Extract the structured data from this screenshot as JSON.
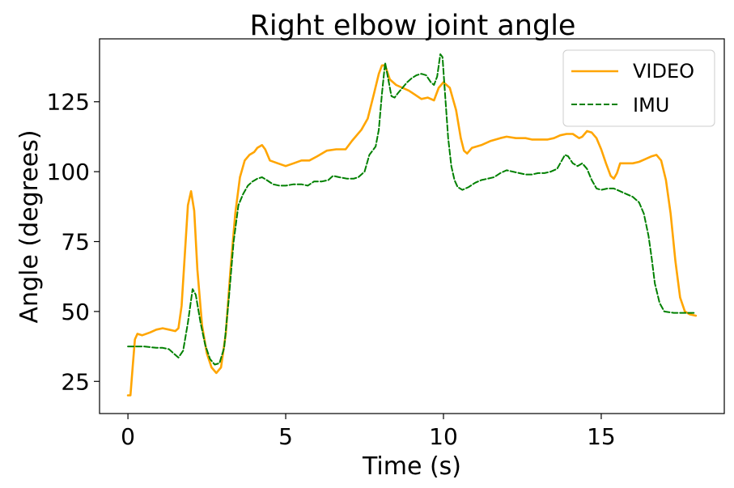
{
  "chart_data": {
    "type": "line",
    "title": "Right elbow joint angle",
    "xlabel": "Time (s)",
    "ylabel": "Angle (degrees)",
    "xlim": [
      -0.9,
      18.9
    ],
    "ylim": [
      13.5,
      147.5
    ],
    "xticks": [
      0,
      5,
      10,
      15
    ],
    "yticks": [
      25,
      50,
      75,
      100,
      125
    ],
    "grid": false,
    "legend_position": "top-right",
    "series": [
      {
        "name": "VIDEO",
        "color": "#ffa500",
        "dash": "solid",
        "points": [
          [
            0,
            20
          ],
          [
            0.08,
            20
          ],
          [
            0.15,
            30
          ],
          [
            0.22,
            40
          ],
          [
            0.3,
            42
          ],
          [
            0.45,
            41.5
          ],
          [
            0.7,
            42.5
          ],
          [
            0.9,
            43.5
          ],
          [
            1.1,
            44
          ],
          [
            1.3,
            43.5
          ],
          [
            1.5,
            43
          ],
          [
            1.6,
            44
          ],
          [
            1.7,
            52
          ],
          [
            1.8,
            70
          ],
          [
            1.9,
            88
          ],
          [
            2.0,
            93
          ],
          [
            2.1,
            86
          ],
          [
            2.2,
            65
          ],
          [
            2.35,
            45
          ],
          [
            2.5,
            35
          ],
          [
            2.65,
            30
          ],
          [
            2.8,
            28
          ],
          [
            2.95,
            30
          ],
          [
            3.1,
            42
          ],
          [
            3.25,
            65
          ],
          [
            3.4,
            85
          ],
          [
            3.55,
            98
          ],
          [
            3.7,
            104
          ],
          [
            3.85,
            106
          ],
          [
            4.0,
            107
          ],
          [
            4.1,
            108.5
          ],
          [
            4.25,
            109.5
          ],
          [
            4.35,
            108
          ],
          [
            4.5,
            104
          ],
          [
            4.75,
            103
          ],
          [
            5.0,
            102
          ],
          [
            5.25,
            103
          ],
          [
            5.5,
            104
          ],
          [
            5.75,
            104
          ],
          [
            6.0,
            105.5
          ],
          [
            6.3,
            107.5
          ],
          [
            6.6,
            108
          ],
          [
            6.9,
            108
          ],
          [
            7.1,
            111
          ],
          [
            7.4,
            115
          ],
          [
            7.6,
            119
          ],
          [
            7.8,
            128
          ],
          [
            7.95,
            135
          ],
          [
            8.05,
            138
          ],
          [
            8.15,
            138
          ],
          [
            8.3,
            133
          ],
          [
            8.5,
            131
          ],
          [
            8.7,
            130
          ],
          [
            8.9,
            129
          ],
          [
            9.1,
            127.5
          ],
          [
            9.3,
            126
          ],
          [
            9.5,
            126.5
          ],
          [
            9.7,
            125.5
          ],
          [
            9.85,
            130
          ],
          [
            10.0,
            132
          ],
          [
            10.2,
            130
          ],
          [
            10.4,
            122
          ],
          [
            10.55,
            112
          ],
          [
            10.65,
            107.5
          ],
          [
            10.75,
            106.5
          ],
          [
            10.9,
            108.5
          ],
          [
            11.2,
            109.5
          ],
          [
            11.5,
            111
          ],
          [
            11.8,
            112
          ],
          [
            12.0,
            112.5
          ],
          [
            12.3,
            112
          ],
          [
            12.6,
            112
          ],
          [
            12.8,
            111.5
          ],
          [
            13.0,
            111.5
          ],
          [
            13.3,
            111.5
          ],
          [
            13.5,
            112
          ],
          [
            13.7,
            113
          ],
          [
            13.9,
            113.5
          ],
          [
            14.1,
            113.5
          ],
          [
            14.3,
            112
          ],
          [
            14.4,
            112.5
          ],
          [
            14.55,
            114.5
          ],
          [
            14.7,
            114
          ],
          [
            14.85,
            112
          ],
          [
            15.0,
            108
          ],
          [
            15.15,
            103
          ],
          [
            15.3,
            98.5
          ],
          [
            15.4,
            97.5
          ],
          [
            15.5,
            99.5
          ],
          [
            15.6,
            103
          ],
          [
            15.8,
            103
          ],
          [
            16.0,
            103
          ],
          [
            16.2,
            103.5
          ],
          [
            16.4,
            104.5
          ],
          [
            16.6,
            105.5
          ],
          [
            16.75,
            106
          ],
          [
            16.9,
            104
          ],
          [
            17.05,
            97
          ],
          [
            17.2,
            85
          ],
          [
            17.35,
            68
          ],
          [
            17.5,
            55
          ],
          [
            17.65,
            50
          ],
          [
            17.8,
            49
          ],
          [
            18.0,
            48.5
          ]
        ]
      },
      {
        "name": "IMU",
        "color": "#008000",
        "dash": "dashed",
        "points": [
          [
            0,
            37.5
          ],
          [
            0.5,
            37.5
          ],
          [
            0.9,
            37
          ],
          [
            1.1,
            37
          ],
          [
            1.3,
            36.5
          ],
          [
            1.45,
            35
          ],
          [
            1.6,
            33.5
          ],
          [
            1.75,
            36
          ],
          [
            1.9,
            46
          ],
          [
            2.05,
            58
          ],
          [
            2.15,
            56
          ],
          [
            2.3,
            46
          ],
          [
            2.45,
            38
          ],
          [
            2.6,
            33
          ],
          [
            2.75,
            31
          ],
          [
            2.9,
            31.5
          ],
          [
            3.05,
            37
          ],
          [
            3.2,
            55
          ],
          [
            3.35,
            75
          ],
          [
            3.5,
            88
          ],
          [
            3.65,
            92
          ],
          [
            3.8,
            95
          ],
          [
            3.95,
            96.5
          ],
          [
            4.1,
            97.5
          ],
          [
            4.25,
            98
          ],
          [
            4.4,
            97
          ],
          [
            4.6,
            95.5
          ],
          [
            4.8,
            95
          ],
          [
            5.0,
            95
          ],
          [
            5.25,
            95.5
          ],
          [
            5.5,
            95.5
          ],
          [
            5.7,
            95
          ],
          [
            5.9,
            96.5
          ],
          [
            6.15,
            96.5
          ],
          [
            6.35,
            97
          ],
          [
            6.5,
            98.5
          ],
          [
            6.7,
            98
          ],
          [
            6.95,
            97.5
          ],
          [
            7.15,
            97.5
          ],
          [
            7.3,
            98
          ],
          [
            7.5,
            100
          ],
          [
            7.65,
            106
          ],
          [
            7.85,
            109
          ],
          [
            7.95,
            115
          ],
          [
            8.05,
            128
          ],
          [
            8.15,
            139
          ],
          [
            8.25,
            133
          ],
          [
            8.35,
            127
          ],
          [
            8.45,
            126.5
          ],
          [
            8.55,
            128
          ],
          [
            8.7,
            130
          ],
          [
            8.85,
            132
          ],
          [
            9.0,
            133.5
          ],
          [
            9.15,
            134.5
          ],
          [
            9.3,
            135
          ],
          [
            9.45,
            134.5
          ],
          [
            9.6,
            132
          ],
          [
            9.7,
            131
          ],
          [
            9.8,
            134
          ],
          [
            9.9,
            142
          ],
          [
            9.97,
            141
          ],
          [
            10.05,
            128
          ],
          [
            10.15,
            112
          ],
          [
            10.25,
            102
          ],
          [
            10.35,
            97
          ],
          [
            10.45,
            94.5
          ],
          [
            10.6,
            93.5
          ],
          [
            10.8,
            94.5
          ],
          [
            11.0,
            96
          ],
          [
            11.2,
            97
          ],
          [
            11.4,
            97.5
          ],
          [
            11.6,
            98
          ],
          [
            11.8,
            99.5
          ],
          [
            12.0,
            100.5
          ],
          [
            12.2,
            100
          ],
          [
            12.4,
            99.5
          ],
          [
            12.6,
            99
          ],
          [
            12.8,
            99
          ],
          [
            13.0,
            99.5
          ],
          [
            13.2,
            99.5
          ],
          [
            13.4,
            100
          ],
          [
            13.6,
            101
          ],
          [
            13.75,
            104
          ],
          [
            13.85,
            106
          ],
          [
            13.95,
            105.5
          ],
          [
            14.1,
            103
          ],
          [
            14.25,
            102
          ],
          [
            14.4,
            103
          ],
          [
            14.55,
            101
          ],
          [
            14.7,
            97
          ],
          [
            14.85,
            94
          ],
          [
            15.0,
            93.5
          ],
          [
            15.2,
            94
          ],
          [
            15.4,
            94
          ],
          [
            15.6,
            93
          ],
          [
            15.8,
            92
          ],
          [
            16.0,
            91
          ],
          [
            16.2,
            89
          ],
          [
            16.35,
            85
          ],
          [
            16.5,
            77
          ],
          [
            16.6,
            69
          ],
          [
            16.7,
            60
          ],
          [
            16.85,
            53
          ],
          [
            17.0,
            50
          ],
          [
            17.3,
            49.5
          ],
          [
            17.7,
            49.5
          ],
          [
            18.0,
            49.5
          ]
        ]
      }
    ]
  }
}
